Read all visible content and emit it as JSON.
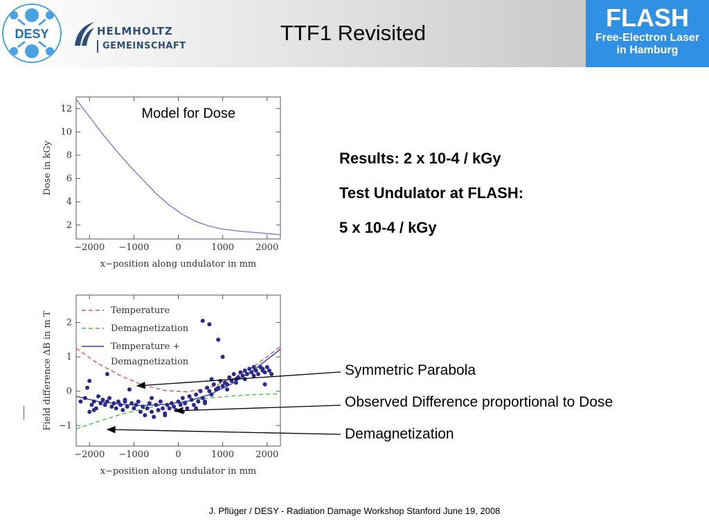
{
  "header": {
    "desy_logo": "DESY",
    "helmholtz_line1": "HELMHOLTZ",
    "helmholtz_line2": "GEMEINSCHAFT",
    "title": "TTF1 Revisited",
    "flash_line1": "FLASH",
    "flash_line2": "Free-Electron Laser",
    "flash_line3": "in Hamburg",
    "flash_color": "#2f90e4"
  },
  "results": {
    "line1": "Results: 2 x 10-4 / kGy",
    "line2": "Test Undulator at FLASH:",
    "line3": "5  x 10-4 / kGy"
  },
  "annotations": {
    "parabola": "Symmetric Parabola",
    "observed": "Observed Difference proportional to Dose",
    "demag": "Demagnetization"
  },
  "footer": "J. Pflüger / DESY  - Radiation Damage Workshop Stanford June 19, 2008",
  "chart_data": [
    {
      "type": "line",
      "annotation": "Model for Dose",
      "xlabel": "x−position along undulator in mm",
      "ylabel": "Dose in kGy",
      "xlim": [
        -2300,
        2300
      ],
      "ylim": [
        0.8,
        13
      ],
      "xticks": [
        -2000,
        -1000,
        0,
        1000,
        2000
      ],
      "xtick_labels": [
        "−2000",
        "−1000",
        "0",
        "1000",
        "2000"
      ],
      "yticks": [
        2,
        4,
        6,
        8,
        10,
        12
      ],
      "series": [
        {
          "color": "#7a7ad8",
          "x": [
            -2300,
            -2000,
            -1700,
            -1400,
            -1100,
            -800,
            -500,
            -200,
            100,
            400,
            700,
            1000,
            1300,
            1600,
            1900,
            2200,
            2300
          ],
          "y": [
            12.8,
            11.3,
            9.8,
            8.4,
            7.1,
            5.9,
            4.7,
            3.7,
            2.9,
            2.3,
            1.9,
            1.65,
            1.5,
            1.4,
            1.3,
            1.2,
            1.15
          ]
        }
      ]
    },
    {
      "type": "scatter",
      "xlabel": "x−position along undulator in mm",
      "ylabel": "Field difference ΔB in m T",
      "xlim": [
        -2300,
        2300
      ],
      "ylim": [
        -1.6,
        2.8
      ],
      "xticks": [
        -2000,
        -1000,
        0,
        1000,
        2000
      ],
      "xtick_labels": [
        "−2000",
        "−1000",
        "0",
        "1000",
        "2000"
      ],
      "yticks": [
        -1,
        0,
        1,
        2
      ],
      "yticks_labels": [
        "−1",
        "0",
        "1",
        "2"
      ],
      "legend": [
        "Temperature",
        "Demagnetization",
        "Temperature +",
        "Demagnetization"
      ],
      "legend_position": "top-left",
      "series": [
        {
          "name": "Temperature",
          "style": "dashed",
          "color": "#e05050",
          "x": [
            -2300,
            -1800,
            -1300,
            -800,
            -300,
            200,
            700,
            1200,
            1700,
            2200,
            2300
          ],
          "y": [
            1.25,
            0.8,
            0.45,
            0.18,
            0.02,
            -0.02,
            0.1,
            0.35,
            0.72,
            1.2,
            1.3
          ]
        },
        {
          "name": "Demagnetization",
          "style": "dashed",
          "color": "#40c040",
          "x": [
            -2300,
            -1800,
            -1300,
            -800,
            -300,
            200,
            700,
            1200,
            1700,
            2200,
            2300
          ],
          "y": [
            -1.1,
            -0.88,
            -0.68,
            -0.52,
            -0.38,
            -0.28,
            -0.2,
            -0.14,
            -0.1,
            -0.08,
            -0.07
          ]
        },
        {
          "name": "Temperature + Demagnetization",
          "style": "solid",
          "color": "#3a3ab0",
          "x": [
            -2300,
            -1800,
            -1300,
            -800,
            -300,
            200,
            700,
            1200,
            1700,
            2200,
            2300
          ],
          "y": [
            -0.15,
            -0.3,
            -0.38,
            -0.42,
            -0.38,
            -0.3,
            -0.1,
            0.21,
            0.62,
            1.12,
            1.23
          ]
        },
        {
          "name": "Measured",
          "style": "points",
          "color": "#2a2a8a",
          "x": [
            -2200,
            -2100,
            -2050,
            -2000,
            -1950,
            -1900,
            -1850,
            -1800,
            -1750,
            -1700,
            -1650,
            -1600,
            -1550,
            -1500,
            -1450,
            -1400,
            -1350,
            -1300,
            -1250,
            -1200,
            -1150,
            -1100,
            -1050,
            -1000,
            -950,
            -900,
            -850,
            -800,
            -750,
            -700,
            -650,
            -600,
            -550,
            -500,
            -450,
            -400,
            -350,
            -300,
            -250,
            -200,
            -150,
            -100,
            -50,
            0,
            50,
            100,
            150,
            200,
            250,
            300,
            350,
            400,
            450,
            500,
            550,
            600,
            650,
            700,
            750,
            800,
            850,
            900,
            950,
            1000,
            1050,
            1100,
            1150,
            1200,
            1250,
            1300,
            1350,
            1400,
            1450,
            1500,
            1550,
            1600,
            1650,
            1700,
            1750,
            1800,
            1850,
            1900,
            1950,
            2000,
            2050,
            2100,
            550,
            700,
            900,
            1000,
            750,
            1950,
            -2000,
            -1900,
            -1600,
            -1200,
            -600,
            -300,
            100,
            400,
            600,
            1100,
            1300,
            1500,
            1700,
            1900
          ],
          "y": [
            -0.3,
            -0.2,
            0.1,
            -0.6,
            -0.4,
            -0.3,
            -0.5,
            -0.15,
            -0.35,
            -0.25,
            -0.4,
            -0.3,
            -0.2,
            -0.45,
            -0.35,
            -0.5,
            -0.3,
            -0.4,
            -0.55,
            -0.3,
            -0.45,
            0.05,
            -0.35,
            -0.5,
            -0.4,
            -0.3,
            -0.6,
            -0.45,
            -0.7,
            -0.5,
            -0.35,
            -0.6,
            -0.75,
            -0.4,
            -0.55,
            -0.3,
            -0.5,
            -0.65,
            -0.4,
            -0.5,
            -0.35,
            -0.45,
            -0.55,
            -0.3,
            -0.4,
            -0.2,
            -0.35,
            -0.5,
            -0.15,
            -0.25,
            -0.4,
            -0.1,
            -0.3,
            0.0,
            -0.2,
            -0.3,
            0.1,
            0.0,
            -0.1,
            0.2,
            0.05,
            0.1,
            0.3,
            0.15,
            0.25,
            0.2,
            0.4,
            0.3,
            0.5,
            0.35,
            0.4,
            0.55,
            0.45,
            0.6,
            0.5,
            0.65,
            0.55,
            0.7,
            0.6,
            0.5,
            0.7,
            0.65,
            0.55,
            0.7,
            0.6,
            0.5,
            2.05,
            1.95,
            1.5,
            1.0,
            0.35,
            0.2,
            0.3,
            -0.55,
            0.5,
            -0.25,
            -0.2,
            -0.7,
            -0.6,
            -0.5,
            -0.35,
            0.05,
            0.25,
            0.35,
            0.45,
            0.6
          ]
        }
      ]
    }
  ]
}
